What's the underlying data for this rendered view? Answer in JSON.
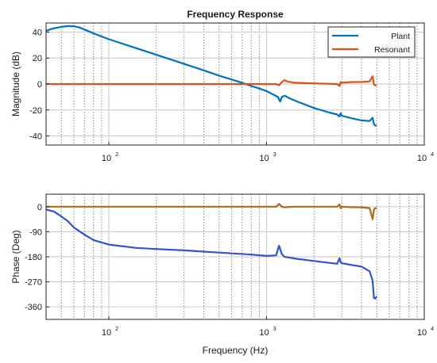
{
  "chart_data": [
    {
      "type": "line",
      "title": "Frequency Response",
      "xlabel": "",
      "ylabel": "Magnitude (dB)",
      "xscale": "log",
      "xlim": [
        40,
        10000
      ],
      "ylim": [
        -47,
        47
      ],
      "yticks": [
        40,
        20,
        0,
        -20,
        -40
      ],
      "ytick_labels": [
        "40",
        "20",
        "0",
        "-20",
        "-40"
      ],
      "xticks": [
        100,
        1000,
        10000
      ],
      "xtick_labels": [
        {
          "base": "10",
          "exp": "2"
        },
        {
          "base": "10",
          "exp": "3"
        },
        {
          "base": "10",
          "exp": "4"
        }
      ],
      "grid": true,
      "legend": "top-right",
      "series": [
        {
          "name": "Plant",
          "color": "#0072bd",
          "points": [
            [
              40,
              41
            ],
            [
              45,
              43
            ],
            [
              50,
              44
            ],
            [
              55,
              44.6
            ],
            [
              60,
              44.5
            ],
            [
              65,
              43.5
            ],
            [
              70,
              42
            ],
            [
              80,
              39
            ],
            [
              100,
              34.5
            ],
            [
              150,
              27.5
            ],
            [
              200,
              22.5
            ],
            [
              300,
              15.5
            ],
            [
              400,
              10.5
            ],
            [
              500,
              6.5
            ],
            [
              600,
              3.5
            ],
            [
              700,
              1
            ],
            [
              800,
              -1.5
            ],
            [
              900,
              -3.5
            ],
            [
              1000,
              -5.5
            ],
            [
              1100,
              -8
            ],
            [
              1180,
              -10
            ],
            [
              1220,
              -13.5
            ],
            [
              1250,
              -10
            ],
            [
              1300,
              -9
            ],
            [
              1400,
              -11
            ],
            [
              1600,
              -14
            ],
            [
              2000,
              -18.5
            ],
            [
              2500,
              -22
            ],
            [
              2800,
              -23.5
            ],
            [
              2900,
              -25
            ],
            [
              2950,
              -22.5
            ],
            [
              3000,
              -24.5
            ],
            [
              3500,
              -26.5
            ],
            [
              4000,
              -28
            ],
            [
              4500,
              -28.5
            ],
            [
              4700,
              -26
            ],
            [
              4800,
              -31
            ],
            [
              4900,
              -32
            ],
            [
              5000,
              -32
            ]
          ]
        },
        {
          "name": "Resonant",
          "color": "#d95319",
          "points": [
            [
              40,
              0
            ],
            [
              500,
              0
            ],
            [
              1000,
              0
            ],
            [
              1150,
              0
            ],
            [
              1200,
              -1
            ],
            [
              1250,
              1.5
            ],
            [
              1300,
              3
            ],
            [
              1350,
              2
            ],
            [
              1500,
              1
            ],
            [
              2000,
              0.5
            ],
            [
              2800,
              0
            ],
            [
              2900,
              -1.5
            ],
            [
              2950,
              1.5
            ],
            [
              3000,
              1
            ],
            [
              3500,
              1.5
            ],
            [
              4000,
              1.5
            ],
            [
              4500,
              2
            ],
            [
              4700,
              6
            ],
            [
              4800,
              -0.5
            ],
            [
              4900,
              -1
            ],
            [
              5000,
              -1
            ]
          ]
        }
      ]
    },
    {
      "type": "line",
      "title": "",
      "xlabel": "Frequency (Hz)",
      "ylabel": "Phase (Deg)",
      "xscale": "log",
      "xlim": [
        40,
        10000
      ],
      "ylim": [
        -405,
        45
      ],
      "yticks": [
        0,
        -90,
        -180,
        -270,
        -360
      ],
      "ytick_labels": [
        "0",
        "-90",
        "-180",
        "-270",
        "-360"
      ],
      "xticks": [
        100,
        1000,
        10000
      ],
      "xtick_labels": [
        {
          "base": "10",
          "exp": "2"
        },
        {
          "base": "10",
          "exp": "3"
        },
        {
          "base": "10",
          "exp": "4"
        }
      ],
      "grid": true,
      "series": [
        {
          "name": "",
          "color": "#3353cc",
          "points": [
            [
              40,
              -10
            ],
            [
              45,
              -18
            ],
            [
              50,
              -35
            ],
            [
              55,
              -52
            ],
            [
              60,
              -75
            ],
            [
              70,
              -100
            ],
            [
              80,
              -120
            ],
            [
              100,
              -136
            ],
            [
              150,
              -148
            ],
            [
              200,
              -152
            ],
            [
              300,
              -157
            ],
            [
              500,
              -165
            ],
            [
              800,
              -172
            ],
            [
              1000,
              -177
            ],
            [
              1150,
              -175
            ],
            [
              1200,
              -140
            ],
            [
              1250,
              -170
            ],
            [
              1300,
              -180
            ],
            [
              1500,
              -186
            ],
            [
              2000,
              -195
            ],
            [
              2800,
              -205
            ],
            [
              2900,
              -185
            ],
            [
              2950,
              -200
            ],
            [
              3000,
              -203
            ],
            [
              3500,
              -210
            ],
            [
              4000,
              -215
            ],
            [
              4500,
              -232
            ],
            [
              4700,
              -265
            ],
            [
              4800,
              -328
            ],
            [
              4900,
              -330
            ],
            [
              5000,
              -322
            ]
          ]
        },
        {
          "name": "",
          "color": "#b06a1a",
          "points": [
            [
              40,
              0
            ],
            [
              1000,
              0
            ],
            [
              1150,
              0
            ],
            [
              1200,
              10
            ],
            [
              1250,
              0
            ],
            [
              1300,
              -2
            ],
            [
              1500,
              0
            ],
            [
              2000,
              0
            ],
            [
              2800,
              0
            ],
            [
              2900,
              8
            ],
            [
              2950,
              -5
            ],
            [
              3000,
              0
            ],
            [
              3500,
              -2
            ],
            [
              4000,
              -2
            ],
            [
              4500,
              -5
            ],
            [
              4700,
              -45
            ],
            [
              4800,
              -10
            ],
            [
              4900,
              -5
            ],
            [
              5000,
              -5
            ]
          ]
        }
      ]
    }
  ]
}
